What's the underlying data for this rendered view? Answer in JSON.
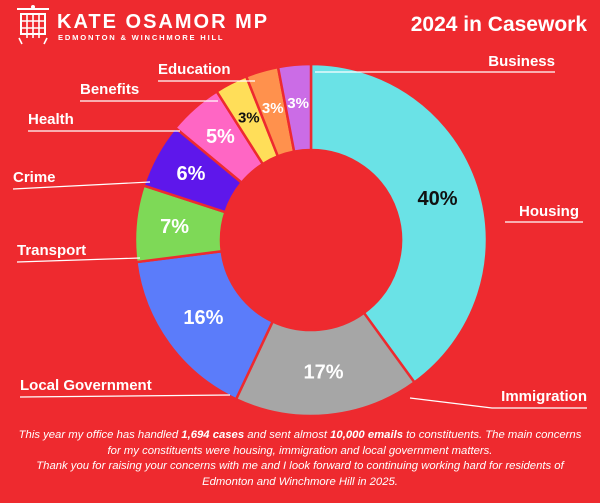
{
  "header": {
    "name": "KATE OSAMOR MP",
    "constituency": "EDMONTON & WINCHMORE HILL",
    "emblem": "portcullis-icon"
  },
  "chart_data": {
    "type": "pie",
    "title": "2024 in Casework",
    "unit": "%",
    "slices": [
      {
        "label": "Housing",
        "value": 40,
        "color": "#6ae2e6",
        "text_color": "#111111"
      },
      {
        "label": "Immigration",
        "value": 17,
        "color": "#a6a6a6",
        "text_color": "#ffffff"
      },
      {
        "label": "Local Government",
        "value": 16,
        "color": "#5b7cfa",
        "text_color": "#ffffff"
      },
      {
        "label": "Transport",
        "value": 7,
        "color": "#7ed957",
        "text_color": "#ffffff"
      },
      {
        "label": "Crime",
        "value": 6,
        "color": "#5e17eb",
        "text_color": "#ffffff"
      },
      {
        "label": "Health",
        "value": 5,
        "color": "#ff66c4",
        "text_color": "#ffffff"
      },
      {
        "label": "Benefits",
        "value": 3,
        "color": "#ffde59",
        "text_color": "#111111"
      },
      {
        "label": "Education",
        "value": 3,
        "color": "#ff914d",
        "text_color": "#ffffff"
      },
      {
        "label": "Business",
        "value": 3,
        "color": "#cb6ce6",
        "text_color": "#ffffff"
      }
    ]
  },
  "footer": {
    "line1_pre": "This year my office has handled ",
    "cases": "1,694 cases",
    "line1_mid": " and sent almost ",
    "emails": "10,000 emails",
    "line1_post": " to constituents. The main concerns",
    "line2": "for my constituents were housing,  immigration and local government matters.",
    "line3": "Thank you for raising your concerns with me and I look forward to continuing working hard for residents of",
    "line4": "Edmonton and Winchmore Hill in 2025."
  }
}
